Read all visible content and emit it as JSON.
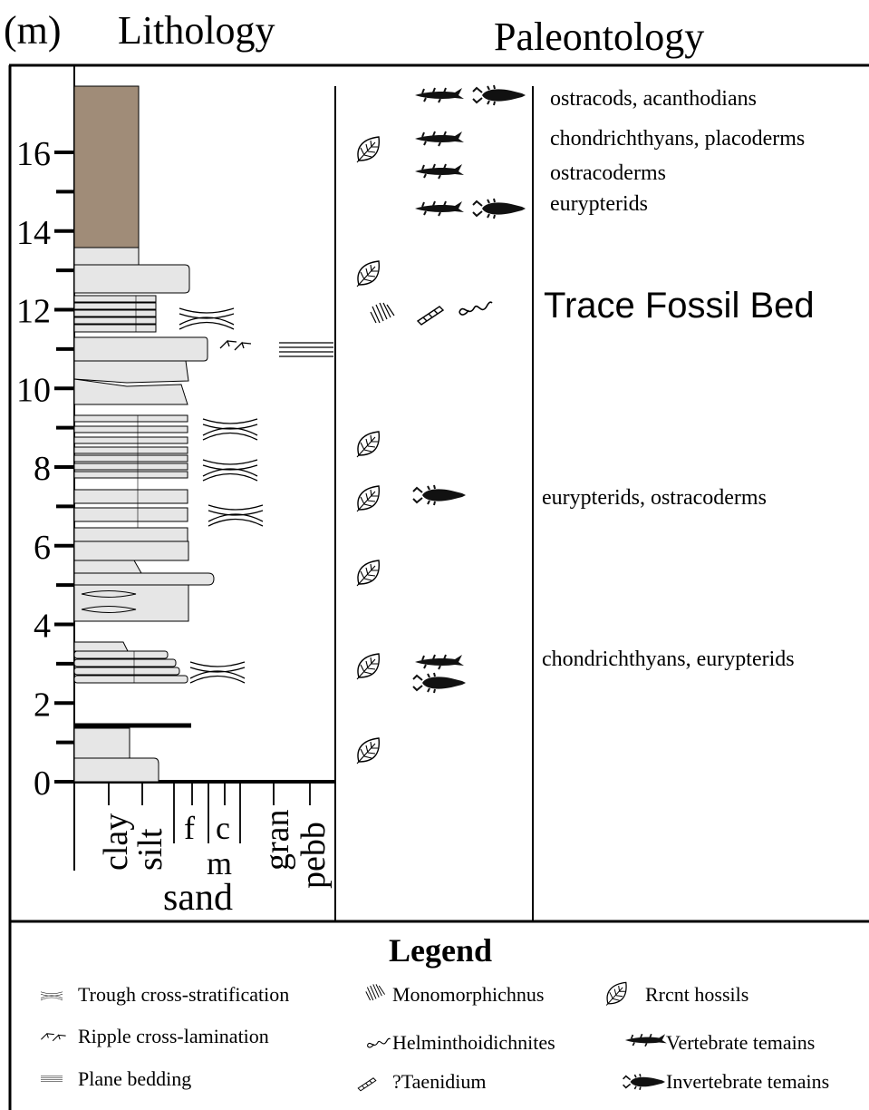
{
  "header": {
    "unit": "(m)",
    "lithology": "Lithology",
    "paleontology": "Paleontology"
  },
  "depth_axis": {
    "ticks": [
      0,
      2,
      4,
      6,
      8,
      10,
      12,
      14,
      16
    ]
  },
  "grain_size": {
    "clay": "clay",
    "silt": "silt",
    "fine": "f",
    "coarse": "c",
    "medium": "m",
    "sand": "sand",
    "granule": "gran",
    "pebble": "pebb"
  },
  "annotations": [
    "ostracods, acanthodians",
    "chondrichthyans, placoderms",
    "ostracoderms",
    "eurypterids",
    "eurypterids, ostracoderms",
    "chondrichthyans, eurypterids"
  ],
  "trace_fossil_bed": "Trace Fossil Bed",
  "legend": {
    "title": "Legend",
    "items": [
      {
        "label": "Trough cross-stratification"
      },
      {
        "label": "Monomorphichnus"
      },
      {
        "label": "Rrcnt hossils"
      },
      {
        "label": "Ripple cross-lamination"
      },
      {
        "label": "Helminthoidichnites"
      },
      {
        "label": "Vertebrate temains"
      },
      {
        "label": "Plane bedding"
      },
      {
        "label": "?Taenidium"
      },
      {
        "label": "Invertebrate temains"
      }
    ]
  }
}
